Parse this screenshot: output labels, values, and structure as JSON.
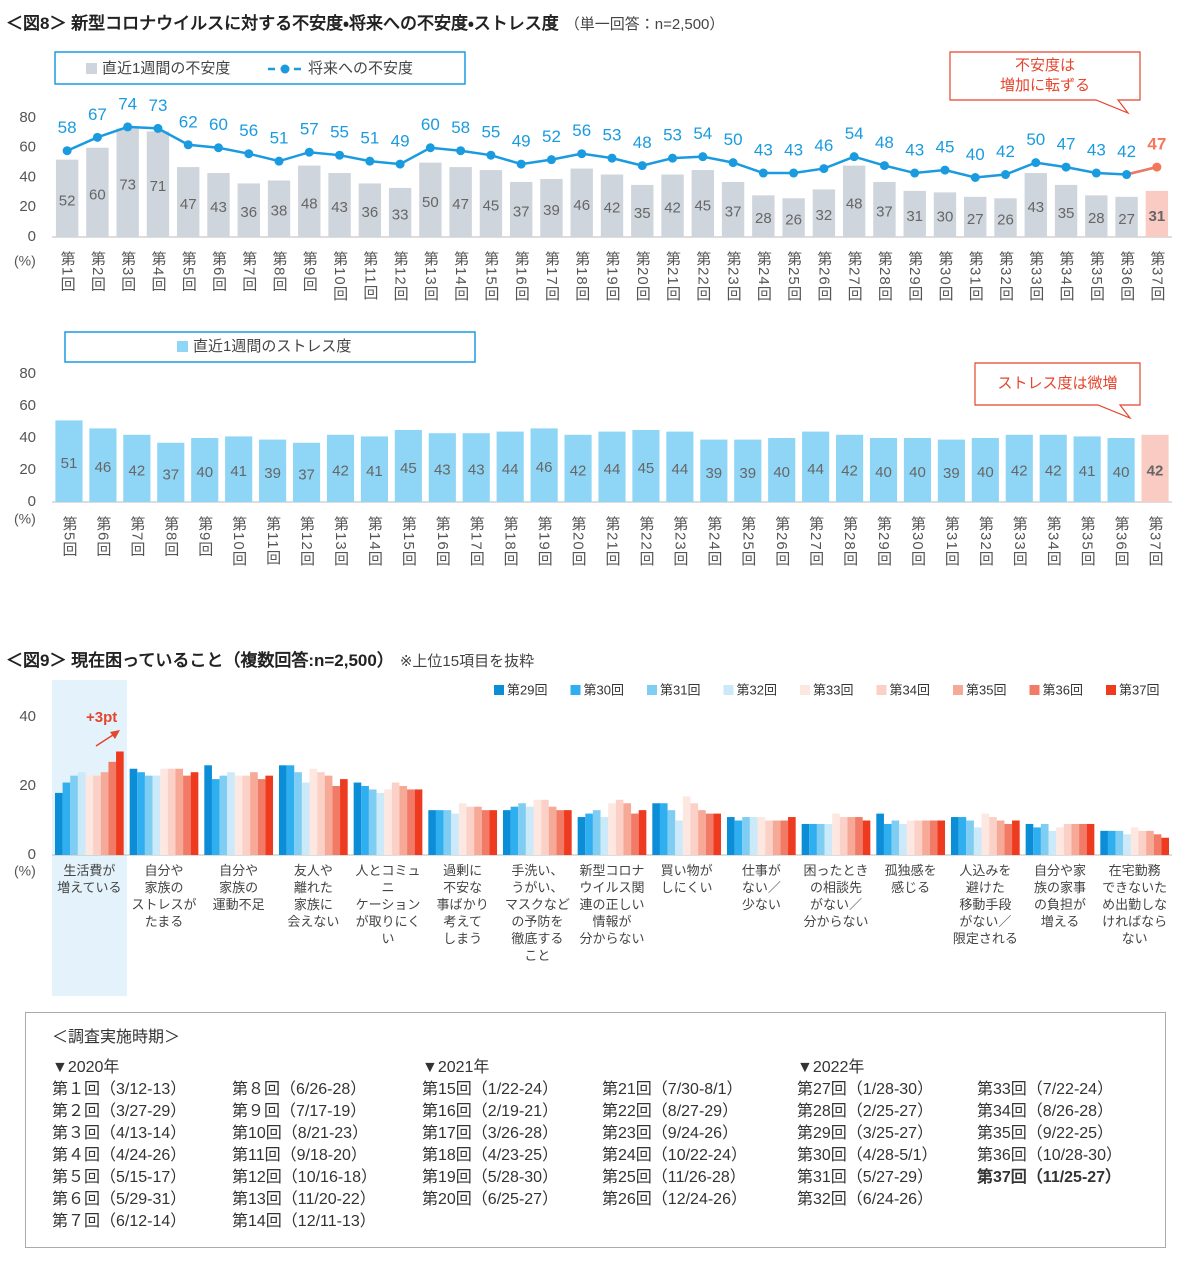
{
  "chart_data": [
    {
      "type": "combo",
      "title": "＜図8＞ 新型コロナウイルスに対する不安度・将来への不安度・ストレス度",
      "subtitle": "（単一回答：n=2,500）",
      "y_unit": "(%)",
      "categories": [
        "第1回",
        "第2回",
        "第3回",
        "第4回",
        "第5回",
        "第6回",
        "第7回",
        "第8回",
        "第9回",
        "第10回",
        "第11回",
        "第12回",
        "第13回",
        "第14回",
        "第15回",
        "第16回",
        "第17回",
        "第18回",
        "第19回",
        "第20回",
        "第21回",
        "第22回",
        "第23回",
        "第24回",
        "第25回",
        "第26回",
        "第27回",
        "第28回",
        "第29回",
        "第30回",
        "第31回",
        "第32回",
        "第33回",
        "第34回",
        "第35回",
        "第36回",
        "第37回"
      ],
      "series": [
        {
          "name": "直近1週間の不安度",
          "type": "bar",
          "color": "#cfd5dd",
          "highlight_color": "#f9cbc3",
          "values": [
            52,
            60,
            73,
            71,
            47,
            43,
            36,
            38,
            48,
            43,
            36,
            33,
            50,
            47,
            45,
            37,
            39,
            46,
            42,
            35,
            42,
            45,
            37,
            28,
            26,
            32,
            48,
            37,
            31,
            30,
            27,
            26,
            43,
            35,
            28,
            27,
            31
          ]
        },
        {
          "name": "将来への不安度",
          "type": "line",
          "color": "#1a9be0",
          "highlight_color": "#f4775b",
          "values": [
            58,
            67,
            74,
            73,
            62,
            60,
            56,
            51,
            57,
            55,
            51,
            49,
            60,
            58,
            55,
            49,
            52,
            56,
            53,
            48,
            53,
            54,
            50,
            43,
            43,
            46,
            54,
            48,
            43,
            45,
            40,
            42,
            50,
            47,
            43,
            42,
            47
          ]
        }
      ],
      "ylim": [
        0,
        80
      ],
      "yticks": [
        0,
        20,
        40,
        60,
        80
      ],
      "annotation": "不安度は\n増加に転ずる"
    },
    {
      "type": "bar",
      "y_unit": "(%)",
      "categories": [
        "第5回",
        "第6回",
        "第7回",
        "第8回",
        "第9回",
        "第10回",
        "第11回",
        "第12回",
        "第13回",
        "第14回",
        "第15回",
        "第16回",
        "第17回",
        "第18回",
        "第19回",
        "第20回",
        "第21回",
        "第22回",
        "第23回",
        "第24回",
        "第25回",
        "第26回",
        "第27回",
        "第28回",
        "第29回",
        "第30回",
        "第31回",
        "第32回",
        "第33回",
        "第34回",
        "第35回",
        "第36回",
        "第37回"
      ],
      "series": [
        {
          "name": "直近1週間のストレス度",
          "color": "#8fd6f6",
          "highlight_color": "#f9cbc3",
          "values": [
            51,
            46,
            42,
            37,
            40,
            41,
            39,
            37,
            42,
            41,
            45,
            43,
            43,
            44,
            46,
            42,
            44,
            45,
            44,
            39,
            39,
            40,
            44,
            42,
            40,
            40,
            39,
            40,
            42,
            42,
            41,
            40,
            42
          ]
        }
      ],
      "ylim": [
        0,
        80
      ],
      "yticks": [
        0,
        20,
        40,
        60,
        80
      ],
      "annotation": "ストレス度は微増"
    },
    {
      "type": "bar",
      "title": "＜図9＞ 現在困っていること（複数回答:n=2,500）",
      "subtitle": "※上位15項目を抜粋",
      "y_unit": "(%)",
      "categories": [
        "生活費が\n増えている",
        "自分や\n家族の\nストレスが\nたまる",
        "自分や\n家族の\n運動不足",
        "友人や\n離れた\n家族に\n会えない",
        "人とコミュニ\nケーション\nが取りにく\nい",
        "過剰に\n不安な\n事ばかり\n考えて\nしまう",
        "手洗い、\nうがい、\nマスクなど\nの予防を\n徹底する\nこと",
        "新型コロナ\nウイルス関\n連の正しい\n情報が\n分からない",
        "買い物が\nしにくい",
        "仕事が\nない／\n少ない",
        "困ったとき\nの相談先\nがない／\n分からない",
        "孤独感を\n感じる",
        "人込みを\n避けた\n移動手段\nがない／\n限定される",
        "自分や家\n族の家事\nの負担が\n増える",
        "在宅勤務\nできないた\nめ出勤しな\nければなら\nない"
      ],
      "series": [
        {
          "name": "第29回",
          "color": "#0b8ed6",
          "values": [
            18,
            25,
            26,
            26,
            21,
            13,
            13,
            11,
            15,
            11,
            9,
            12,
            11,
            9,
            7
          ]
        },
        {
          "name": "第30回",
          "color": "#30aff0",
          "values": [
            21,
            24,
            22,
            26,
            20,
            13,
            14,
            12,
            15,
            10,
            9,
            9,
            11,
            8,
            7
          ]
        },
        {
          "name": "第31回",
          "color": "#7fcdf2",
          "values": [
            23,
            23,
            23,
            24,
            19,
            13,
            15,
            13,
            13,
            11,
            9,
            10,
            10,
            9,
            7
          ]
        },
        {
          "name": "第32回",
          "color": "#cbe9f8",
          "values": [
            24,
            23,
            24,
            21,
            18,
            12,
            14,
            11,
            10,
            11,
            9,
            9,
            8,
            7,
            6
          ]
        },
        {
          "name": "第33回",
          "color": "#fde7e1",
          "values": [
            23,
            25,
            23,
            25,
            19,
            15,
            16,
            15,
            17,
            11,
            12,
            10,
            12,
            8,
            8
          ]
        },
        {
          "name": "第34回",
          "color": "#fbd0c6",
          "values": [
            23,
            25,
            23,
            24,
            21,
            14,
            16,
            16,
            15,
            10,
            11,
            10,
            11,
            9,
            7
          ]
        },
        {
          "name": "第35回",
          "color": "#f7a998",
          "values": [
            24,
            25,
            24,
            23,
            20,
            14,
            14,
            15,
            13,
            10,
            11,
            10,
            10,
            9,
            7
          ]
        },
        {
          "name": "第36回",
          "color": "#f27b67",
          "values": [
            27,
            23,
            22,
            20,
            19,
            13,
            13,
            12,
            12,
            10,
            11,
            10,
            9,
            9,
            6
          ]
        },
        {
          "name": "第37回",
          "color": "#ee3a1f",
          "values": [
            30,
            24,
            23,
            22,
            19,
            13,
            13,
            13,
            12,
            11,
            10,
            10,
            10,
            9,
            5
          ]
        }
      ],
      "ylim": [
        0,
        40
      ],
      "yticks": [
        0,
        20,
        40
      ],
      "annotation": "+3pt"
    }
  ],
  "schedule": {
    "title": "＜調査実施時期＞",
    "years": [
      {
        "label": "▼2020年",
        "columns": [
          [
            "第１回（3/12-13）",
            "第２回（3/27-29）",
            "第３回（4/13-14）",
            "第４回（4/24-26）",
            "第５回（5/15-17）",
            "第６回（5/29-31）",
            "第７回（6/12-14）"
          ],
          [
            "第８回（6/26-28）",
            "第９回（7/17-19）",
            "第10回（8/21-23）",
            "第11回（9/18-20）",
            "第12回（10/16-18）",
            "第13回（11/20-22）",
            "第14回（12/11-13）"
          ]
        ]
      },
      {
        "label": "▼2021年",
        "columns": [
          [
            "第15回（1/22-24）",
            "第16回（2/19-21）",
            "第17回（3/26-28）",
            "第18回（4/23-25）",
            "第19回（5/28-30）",
            "第20回（6/25-27）"
          ],
          [
            "第21回（7/30-8/1）",
            "第22回（8/27-29）",
            "第23回（9/24-26）",
            "第24回（10/22-24）",
            "第25回（11/26-28）",
            "第26回（12/24-26）"
          ]
        ]
      },
      {
        "label": "▼2022年",
        "columns": [
          [
            "第27回（1/28-30）",
            "第28回（2/25-27）",
            "第29回（3/25-27）",
            "第30回（4/28-5/1）",
            "第31回（5/27-29）",
            "第32回（6/24-26）"
          ],
          [
            "第33回（7/22-24）",
            "第34回（8/26-28）",
            "第35回（9/22-25）",
            "第36回（10/28-30）",
            "第37回（11/25-27）"
          ]
        ]
      }
    ]
  }
}
